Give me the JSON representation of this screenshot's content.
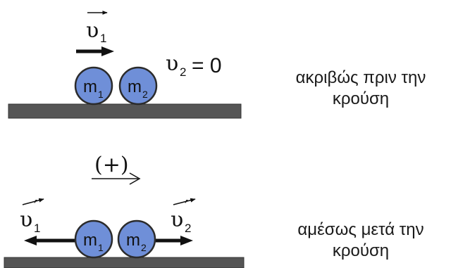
{
  "before": {
    "velocity_symbol": "υ",
    "velocity_subscript": "1",
    "second_symbol": "υ",
    "second_subscript": "2",
    "second_value": "= 0",
    "ball1_label": "m",
    "ball1_subscript": "1",
    "ball2_label": "m",
    "ball2_subscript": "2",
    "caption_line1": "ακριβώς πριν την",
    "caption_line2": "κρούση"
  },
  "direction": {
    "label": "(+)"
  },
  "after": {
    "velocity1_symbol": "υ",
    "velocity1_subscript": "1",
    "velocity1_prime": "′",
    "velocity2_symbol": "υ",
    "velocity2_subscript": "2",
    "velocity2_prime": "′",
    "ball1_label": "m",
    "ball1_subscript": "1",
    "ball2_label": "m",
    "ball2_subscript": "2",
    "caption_line1": "αμέσως μετά την",
    "caption_line2": "κρούση"
  },
  "colors": {
    "ball_fill": "#6f8fd8",
    "ball_stroke": "#2b2b2b",
    "ground_fill": "#555555",
    "arrow": "#111111"
  }
}
